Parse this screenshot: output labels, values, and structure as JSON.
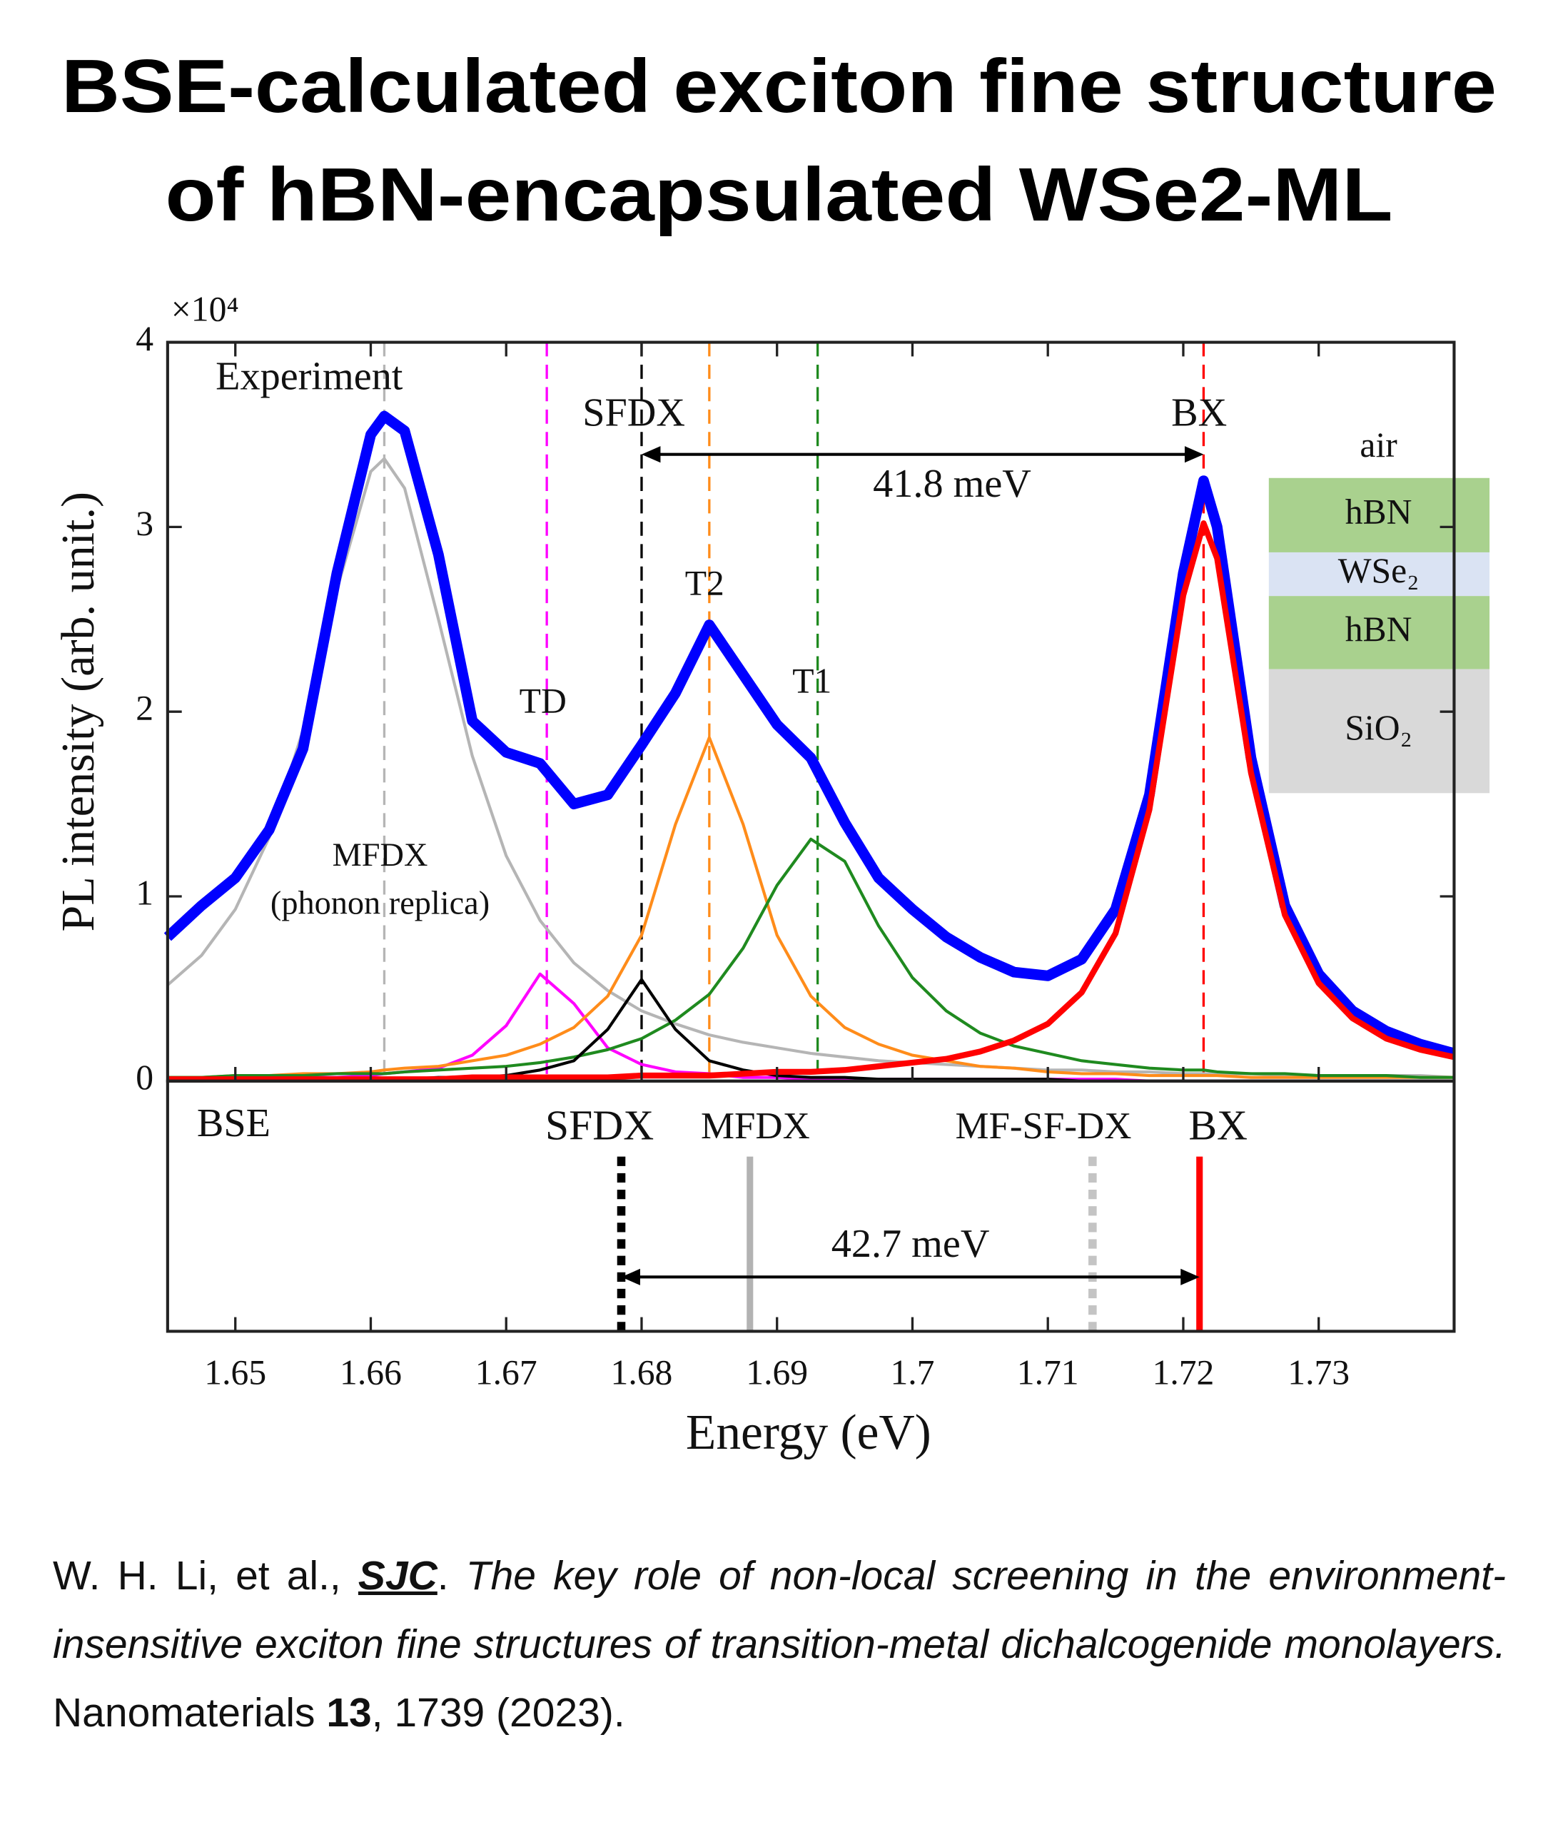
{
  "header": {
    "title": [
      "BSE-calculated exciton fine structure",
      "of hBN-encapsulated WSe2-ML"
    ]
  },
  "chart_data": [
    {
      "type": "line",
      "ylabel": "PL intensity (arb. unit.)",
      "y_multiplier": "×10⁴",
      "xlim": [
        1.645,
        1.74
      ],
      "xticks": [
        1.65,
        1.66,
        1.67,
        1.68,
        1.69,
        1.7,
        1.71,
        1.72,
        1.73
      ],
      "ylim": [
        0,
        4
      ],
      "yticks": [
        0,
        1,
        2,
        3,
        4
      ],
      "grid": false,
      "x": [
        1.645,
        1.6475,
        1.65,
        1.6525,
        1.655,
        1.6575,
        1.66,
        1.661,
        1.6625,
        1.665,
        1.6675,
        1.67,
        1.6725,
        1.675,
        1.6775,
        1.68,
        1.6825,
        1.685,
        1.6875,
        1.69,
        1.6925,
        1.695,
        1.6975,
        1.7,
        1.7025,
        1.705,
        1.7075,
        1.71,
        1.7125,
        1.715,
        1.7175,
        1.72,
        1.7215,
        1.7225,
        1.725,
        1.7275,
        1.73,
        1.7325,
        1.735,
        1.7375,
        1.74
      ],
      "series": [
        {
          "name": "MFDX",
          "color": "#b5b5b5",
          "peak": 1.661,
          "values": [
            0.52,
            0.68,
            0.93,
            1.32,
            1.9,
            2.66,
            3.3,
            3.37,
            3.21,
            2.5,
            1.76,
            1.22,
            0.87,
            0.64,
            0.49,
            0.38,
            0.31,
            0.25,
            0.21,
            0.18,
            0.15,
            0.13,
            0.11,
            0.1,
            0.09,
            0.08,
            0.07,
            0.06,
            0.06,
            0.05,
            0.05,
            0.04,
            0.04,
            0.04,
            0.04,
            0.03,
            0.03,
            0.03,
            0.03,
            0.03,
            0.02
          ]
        },
        {
          "name": "TD",
          "color": "#ff00ff",
          "peak": 1.673,
          "values": [
            0.01,
            0.01,
            0.01,
            0.01,
            0.02,
            0.02,
            0.03,
            0.04,
            0.05,
            0.07,
            0.14,
            0.3,
            0.58,
            0.42,
            0.18,
            0.09,
            0.05,
            0.04,
            0.02,
            0.02,
            0.01,
            0.01,
            0.01,
            0.01,
            0.01,
            0.01,
            0.01,
            0.01,
            0.01,
            0.01,
            0,
            0,
            0,
            0,
            0,
            0,
            0,
            0,
            0,
            0,
            0
          ]
        },
        {
          "name": "T2",
          "color": "#ff8c1a",
          "peak": 1.685,
          "values": [
            0.02,
            0.02,
            0.03,
            0.03,
            0.04,
            0.04,
            0.05,
            0.06,
            0.07,
            0.08,
            0.11,
            0.14,
            0.2,
            0.29,
            0.46,
            0.79,
            1.39,
            1.86,
            1.39,
            0.79,
            0.46,
            0.29,
            0.2,
            0.14,
            0.11,
            0.08,
            0.07,
            0.05,
            0.04,
            0.04,
            0.03,
            0.03,
            0.03,
            0.03,
            0.02,
            0.02,
            0.02,
            0.02,
            0.02,
            0.02,
            0.02
          ]
        },
        {
          "name": "T1",
          "color": "#1f8a1f",
          "peak": 1.693,
          "values": [
            0.02,
            0.02,
            0.03,
            0.03,
            0.03,
            0.04,
            0.04,
            0.04,
            0.05,
            0.06,
            0.07,
            0.08,
            0.1,
            0.13,
            0.17,
            0.23,
            0.33,
            0.47,
            0.72,
            1.06,
            1.31,
            1.19,
            0.84,
            0.56,
            0.38,
            0.26,
            0.19,
            0.15,
            0.11,
            0.09,
            0.07,
            0.06,
            0.06,
            0.05,
            0.04,
            0.04,
            0.03,
            0.03,
            0.03,
            0.02,
            0.02
          ]
        },
        {
          "name": "SFDX",
          "color": "#000000",
          "peak": 1.68,
          "values": [
            0,
            0,
            0.01,
            0.01,
            0.01,
            0.01,
            0.01,
            0.01,
            0.01,
            0.02,
            0.02,
            0.03,
            0.06,
            0.11,
            0.28,
            0.55,
            0.28,
            0.11,
            0.06,
            0.03,
            0.02,
            0.02,
            0.01,
            0.01,
            0.01,
            0.01,
            0.01,
            0.01,
            0,
            0,
            0,
            0,
            0,
            0,
            0,
            0,
            0,
            0,
            0,
            0,
            0
          ]
        },
        {
          "name": "Experiment",
          "color": "#0000ff",
          "values": [
            0.78,
            0.95,
            1.1,
            1.36,
            1.8,
            2.75,
            3.5,
            3.6,
            3.52,
            2.85,
            1.95,
            1.78,
            1.72,
            1.5,
            1.55,
            1.82,
            2.1,
            2.47,
            2.2,
            1.93,
            1.75,
            1.4,
            1.1,
            0.93,
            0.78,
            0.67,
            0.59,
            0.57,
            0.66,
            0.93,
            1.55,
            2.75,
            3.25,
            3.0,
            1.75,
            0.95,
            0.58,
            0.38,
            0.27,
            0.2,
            0.15
          ]
        },
        {
          "name": "BX",
          "color": "#ff0000",
          "peak": 1.7215,
          "values": [
            0.01,
            0.01,
            0.01,
            0.01,
            0.01,
            0.01,
            0.01,
            0.01,
            0.01,
            0.01,
            0.02,
            0.02,
            0.02,
            0.02,
            0.02,
            0.03,
            0.03,
            0.03,
            0.04,
            0.05,
            0.05,
            0.06,
            0.08,
            0.1,
            0.12,
            0.16,
            0.22,
            0.31,
            0.48,
            0.8,
            1.47,
            2.63,
            3.02,
            2.83,
            1.67,
            0.9,
            0.53,
            0.34,
            0.23,
            0.17,
            0.13
          ]
        }
      ],
      "annotations": [
        {
          "text": "(phonon replica)"
        },
        {
          "text": "41.8 meV",
          "x": [
            1.68,
            1.7215
          ]
        }
      ],
      "inset": {
        "top": "air",
        "layers": [
          {
            "name": "hBN",
            "color": "#a9d18e"
          },
          {
            "name": "WSe₂",
            "color": "#dae3f3"
          },
          {
            "name": "hBN",
            "color": "#a9d18e"
          },
          {
            "name": "SiO₂",
            "color": "#d9d9d9"
          }
        ]
      }
    },
    {
      "type": "stem",
      "title": "BSE",
      "xlabel": "Energy (eV)",
      "xlim": [
        1.645,
        1.74
      ],
      "xticks": [
        1.65,
        1.66,
        1.67,
        1.68,
        1.69,
        1.7,
        1.71,
        1.72,
        1.73
      ],
      "x": [
        1.6785,
        1.688,
        1.7133,
        1.7212
      ],
      "labels": [
        "SFDX",
        "MFDX",
        "MF-SF-DX",
        "BX"
      ],
      "colors": [
        "#000000",
        "#b3b3b3",
        "#c4c4c4",
        "#ff0000"
      ],
      "dashed": [
        true,
        false,
        true,
        false
      ],
      "annotations": [
        {
          "text": "42.7 meV",
          "x": [
            1.6785,
            1.7212
          ]
        }
      ]
    }
  ],
  "citation": [
    {
      "text": "W. H. Li, et al., "
    },
    {
      "text": "SJC",
      "style": "bold-italic-underline"
    },
    {
      "text": ". "
    },
    {
      "text": "The key role of non-local screening in the environment-insensitive exciton fine structures of transition-metal dichalcogenide monolayers.",
      "style": "italic"
    },
    {
      "text": " Nanomaterials "
    },
    {
      "text": "13",
      "style": "bold"
    },
    {
      "text": ", 1739 (2023)."
    }
  ]
}
